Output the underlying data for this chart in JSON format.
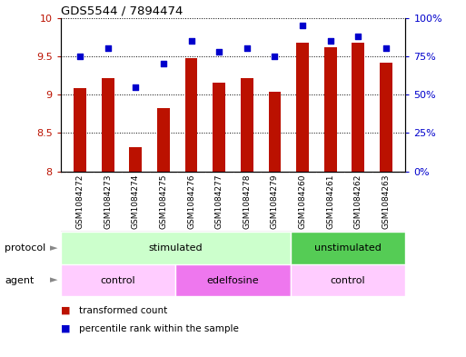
{
  "title": "GDS5544 / 7894474",
  "samples": [
    "GSM1084272",
    "GSM1084273",
    "GSM1084274",
    "GSM1084275",
    "GSM1084276",
    "GSM1084277",
    "GSM1084278",
    "GSM1084279",
    "GSM1084260",
    "GSM1084261",
    "GSM1084262",
    "GSM1084263"
  ],
  "bar_values": [
    9.08,
    9.22,
    8.32,
    8.82,
    9.47,
    9.15,
    9.22,
    9.04,
    9.68,
    9.62,
    9.68,
    9.42
  ],
  "dot_values": [
    75,
    80,
    55,
    70,
    85,
    78,
    80,
    75,
    95,
    85,
    88,
    80
  ],
  "bar_color": "#bb1100",
  "dot_color": "#0000cc",
  "ylim_left": [
    8.0,
    10.0
  ],
  "ylim_right": [
    0,
    100
  ],
  "yticks_left": [
    8.0,
    8.5,
    9.0,
    9.5,
    10.0
  ],
  "yticks_right": [
    0,
    25,
    50,
    75,
    100
  ],
  "yticklabels_left": [
    "8",
    "8.5",
    "9",
    "9.5",
    "10"
  ],
  "yticklabels_right": [
    "0%",
    "25%",
    "50%",
    "75%",
    "100%"
  ],
  "protocol_groups": [
    {
      "label": "stimulated",
      "start": 0,
      "end": 8,
      "color": "#ccffcc"
    },
    {
      "label": "unstimulated",
      "start": 8,
      "end": 12,
      "color": "#55cc55"
    }
  ],
  "agent_groups": [
    {
      "label": "control",
      "start": 0,
      "end": 4,
      "color": "#ffccff"
    },
    {
      "label": "edelfosine",
      "start": 4,
      "end": 8,
      "color": "#ee77ee"
    },
    {
      "label": "control",
      "start": 8,
      "end": 12,
      "color": "#ffccff"
    }
  ],
  "legend_bar_label": "transformed count",
  "legend_dot_label": "percentile rank within the sample",
  "protocol_label": "protocol",
  "agent_label": "agent",
  "label_color": "#888888",
  "sample_bg_color": "#cccccc",
  "background_color": "#ffffff"
}
